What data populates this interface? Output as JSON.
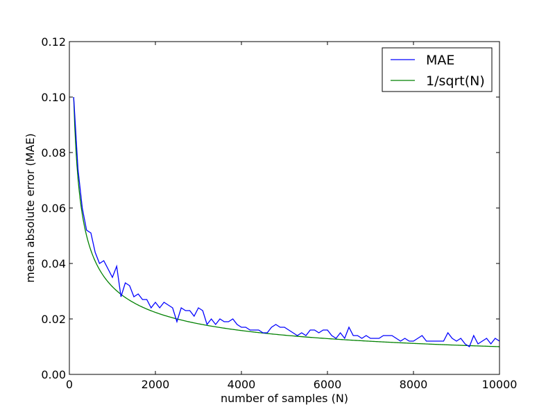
{
  "chart_data": {
    "type": "line",
    "title": "",
    "xlabel": "number of samples (N)",
    "ylabel": "mean absolute error (MAE)",
    "xlim": [
      0,
      10000
    ],
    "ylim": [
      0,
      0.12
    ],
    "xticks": [
      "0",
      "2000",
      "4000",
      "6000",
      "8000",
      "10000"
    ],
    "xtick_values": [
      0,
      2000,
      4000,
      6000,
      8000,
      10000
    ],
    "yticks": [
      "0.00",
      "0.02",
      "0.04",
      "0.06",
      "0.08",
      "0.10",
      "0.12"
    ],
    "ytick_values": [
      0,
      0.02,
      0.04,
      0.06,
      0.08,
      0.1,
      0.12
    ],
    "grid": false,
    "legend_position": "top-right",
    "series": [
      {
        "name": "MAE",
        "color": "#0000ff",
        "x": [
          100,
          200,
          300,
          400,
          500,
          600,
          700,
          800,
          900,
          1000,
          1100,
          1200,
          1300,
          1400,
          1500,
          1600,
          1700,
          1800,
          1900,
          2000,
          2100,
          2200,
          2300,
          2400,
          2500,
          2600,
          2700,
          2800,
          2900,
          3000,
          3100,
          3200,
          3300,
          3400,
          3500,
          3600,
          3700,
          3800,
          3900,
          4000,
          4100,
          4200,
          4300,
          4400,
          4500,
          4600,
          4700,
          4800,
          4900,
          5000,
          5100,
          5200,
          5300,
          5400,
          5500,
          5600,
          5700,
          5800,
          5900,
          6000,
          6100,
          6200,
          6300,
          6400,
          6500,
          6600,
          6700,
          6800,
          6900,
          7000,
          7100,
          7200,
          7300,
          7400,
          7500,
          7600,
          7700,
          7800,
          7900,
          8000,
          8100,
          8200,
          8300,
          8400,
          8500,
          8600,
          8700,
          8800,
          8900,
          9000,
          9100,
          9200,
          9300,
          9400,
          9500,
          9600,
          9700,
          9800,
          9900,
          10000
        ],
        "y": [
          0.1,
          0.074,
          0.06,
          0.052,
          0.051,
          0.044,
          0.04,
          0.041,
          0.038,
          0.035,
          0.039,
          0.028,
          0.033,
          0.032,
          0.028,
          0.029,
          0.027,
          0.027,
          0.024,
          0.026,
          0.024,
          0.026,
          0.025,
          0.024,
          0.019,
          0.024,
          0.023,
          0.023,
          0.021,
          0.024,
          0.023,
          0.018,
          0.02,
          0.018,
          0.02,
          0.019,
          0.019,
          0.02,
          0.018,
          0.017,
          0.017,
          0.016,
          0.016,
          0.016,
          0.015,
          0.015,
          0.017,
          0.018,
          0.017,
          0.017,
          0.016,
          0.015,
          0.014,
          0.015,
          0.014,
          0.016,
          0.016,
          0.015,
          0.016,
          0.016,
          0.014,
          0.013,
          0.015,
          0.013,
          0.017,
          0.014,
          0.014,
          0.013,
          0.014,
          0.013,
          0.013,
          0.013,
          0.014,
          0.014,
          0.014,
          0.013,
          0.012,
          0.013,
          0.012,
          0.012,
          0.013,
          0.014,
          0.012,
          0.012,
          0.012,
          0.012,
          0.012,
          0.015,
          0.013,
          0.012,
          0.013,
          0.011,
          0.01,
          0.014,
          0.011,
          0.012,
          0.013,
          0.011,
          0.013,
          0.012
        ]
      },
      {
        "name": "1/sqrt(N)",
        "color": "#008000",
        "formula": "1/sqrt(N)",
        "x_start": 100,
        "x_end": 10000
      }
    ]
  }
}
